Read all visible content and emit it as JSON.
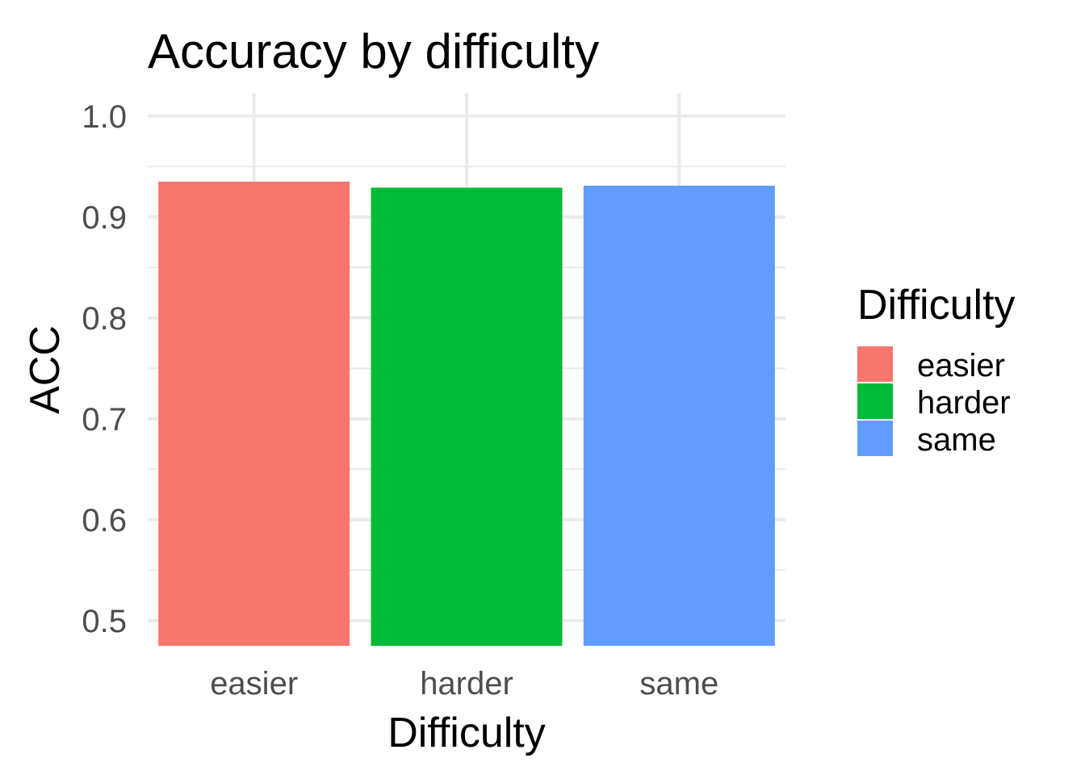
{
  "chart_data": {
    "type": "bar",
    "title": "Accuracy by difficulty",
    "xlabel": "Difficulty",
    "ylabel": "ACC",
    "categories": [
      "easier",
      "harder",
      "same"
    ],
    "values": [
      0.935,
      0.929,
      0.931
    ],
    "colors": [
      "#F8766D",
      "#00BA38",
      "#619CFF"
    ],
    "ylim": [
      0.475,
      1.023
    ],
    "yticks": [
      0.5,
      0.6,
      0.7,
      0.8,
      0.9,
      1.0
    ],
    "ytick_labels": [
      "0.5",
      "0.6",
      "0.7",
      "0.8",
      "0.9",
      "1.0"
    ],
    "grid": true,
    "legend": {
      "title": "Difficulty",
      "position": "right",
      "entries": [
        "easier",
        "harder",
        "same"
      ]
    }
  }
}
